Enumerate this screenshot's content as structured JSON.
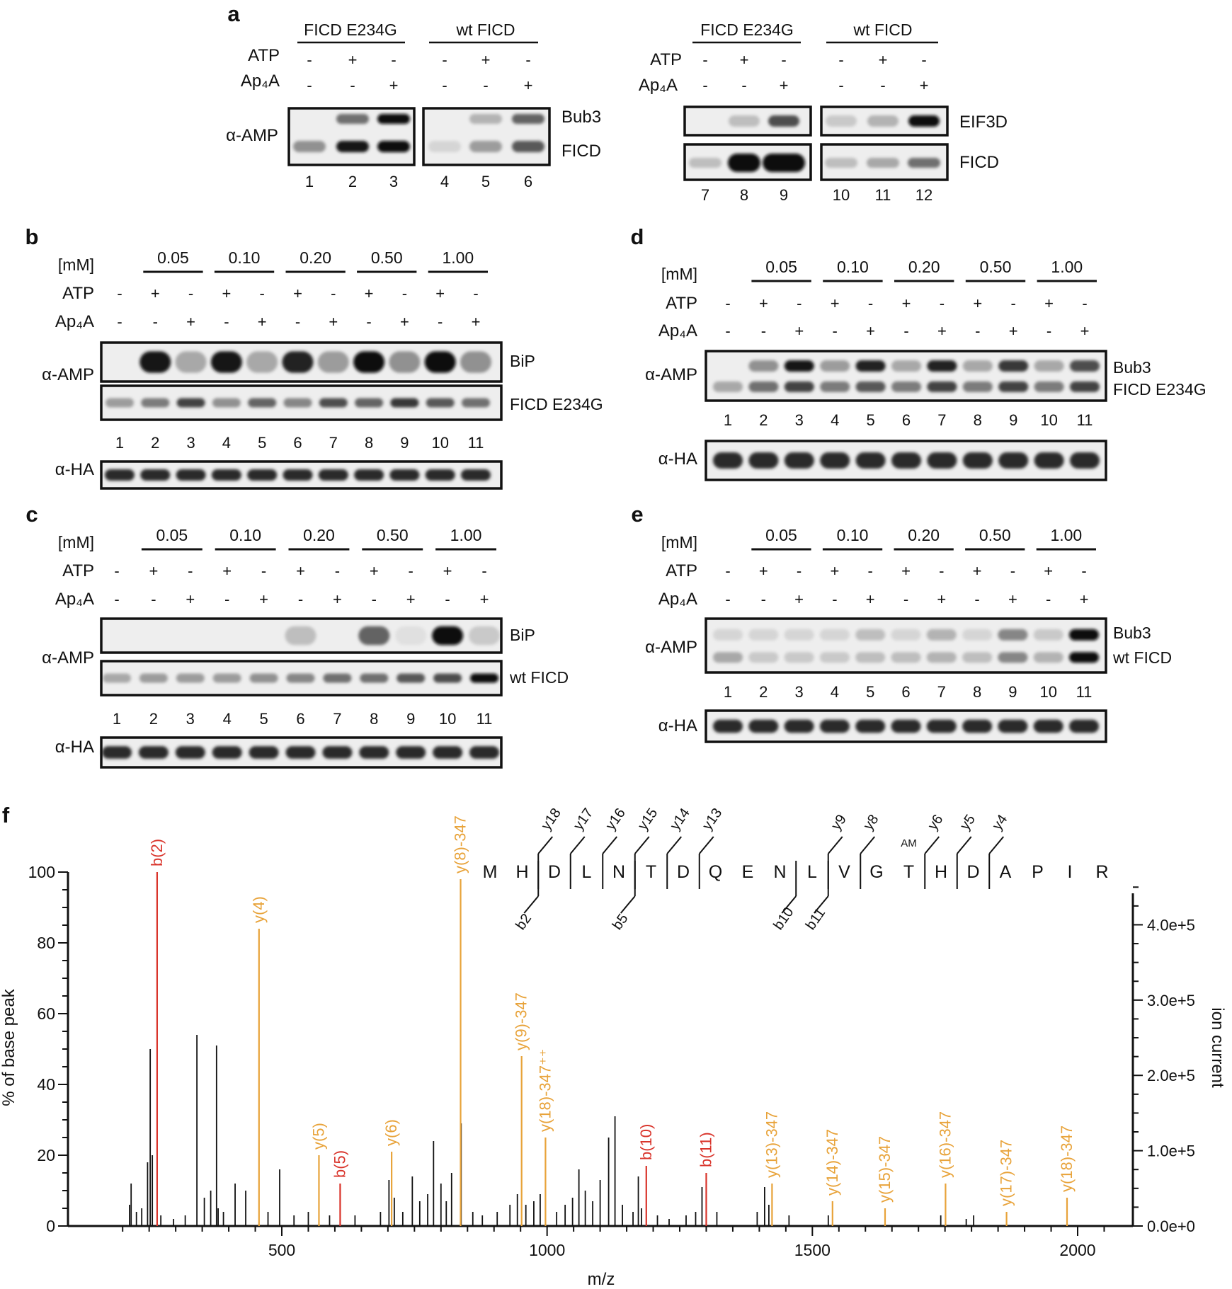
{
  "panel_a": {
    "label": "a",
    "left": {
      "groups": [
        "FICD E234G",
        "wt FICD"
      ],
      "row_labels": [
        "ATP",
        "Ap₄A"
      ],
      "atp": [
        "-",
        "+",
        "-",
        "-",
        "+",
        "-"
      ],
      "ap4a": [
        "-",
        "-",
        "+",
        "-",
        "-",
        "+"
      ],
      "blot_label": "α-AMP",
      "bands": [
        "Bub3",
        "FICD"
      ],
      "lanes": [
        "1",
        "2",
        "3",
        "4",
        "5",
        "6"
      ]
    },
    "right": {
      "groups": [
        "FICD E234G",
        "wt FICD"
      ],
      "row_labels": [
        "ATP",
        "Ap₄A"
      ],
      "atp": [
        "-",
        "+",
        "-",
        "-",
        "+",
        "-"
      ],
      "ap4a": [
        "-",
        "-",
        "+",
        "-",
        "-",
        "+"
      ],
      "bands": [
        "EIF3D",
        "FICD"
      ],
      "lanes": [
        "7",
        "8",
        "9",
        "10",
        "11",
        "12"
      ]
    }
  },
  "titration_panels": [
    {
      "label": "b",
      "conc_label": "[mM]",
      "concentrations": [
        "0.05",
        "0.10",
        "0.20",
        "0.50",
        "1.00"
      ],
      "row_labels": [
        "ATP",
        "Ap₄A"
      ],
      "atp": [
        "-",
        "+",
        "-",
        "+",
        "-",
        "+",
        "-",
        "+",
        "-",
        "+",
        "-"
      ],
      "ap4a": [
        "-",
        "-",
        "+",
        "-",
        "+",
        "-",
        "+",
        "-",
        "+",
        "-",
        "+"
      ],
      "blot_label": "α-AMP",
      "bands": [
        "BiP",
        "FICD E234G"
      ],
      "lanes": [
        "1",
        "2",
        "3",
        "4",
        "5",
        "6",
        "7",
        "8",
        "9",
        "10",
        "11"
      ],
      "loading_label": "α-HA"
    },
    {
      "label": "c",
      "conc_label": "[mM]",
      "concentrations": [
        "0.05",
        "0.10",
        "0.20",
        "0.50",
        "1.00"
      ],
      "row_labels": [
        "ATP",
        "Ap₄A"
      ],
      "atp": [
        "-",
        "+",
        "-",
        "+",
        "-",
        "+",
        "-",
        "+",
        "-",
        "+",
        "-"
      ],
      "ap4a": [
        "-",
        "-",
        "+",
        "-",
        "+",
        "-",
        "+",
        "-",
        "+",
        "-",
        "+"
      ],
      "blot_label": "α-AMP",
      "bands": [
        "BiP",
        "wt FICD"
      ],
      "lanes": [
        "1",
        "2",
        "3",
        "4",
        "5",
        "6",
        "7",
        "8",
        "9",
        "10",
        "11"
      ],
      "loading_label": "α-HA"
    },
    {
      "label": "d",
      "conc_label": "[mM]",
      "concentrations": [
        "0.05",
        "0.10",
        "0.20",
        "0.50",
        "1.00"
      ],
      "row_labels": [
        "ATP",
        "Ap₄A"
      ],
      "atp": [
        "-",
        "+",
        "-",
        "+",
        "-",
        "+",
        "-",
        "+",
        "-",
        "+",
        "-"
      ],
      "ap4a": [
        "-",
        "-",
        "+",
        "-",
        "+",
        "-",
        "+",
        "-",
        "+",
        "-",
        "+"
      ],
      "blot_label": "α-AMP",
      "bands": [
        "Bub3",
        "FICD E234G"
      ],
      "lanes": [
        "1",
        "2",
        "3",
        "4",
        "5",
        "6",
        "7",
        "8",
        "9",
        "10",
        "11"
      ],
      "loading_label": "α-HA"
    },
    {
      "label": "e",
      "conc_label": "[mM]",
      "concentrations": [
        "0.05",
        "0.10",
        "0.20",
        "0.50",
        "1.00"
      ],
      "row_labels": [
        "ATP",
        "Ap₄A"
      ],
      "atp": [
        "-",
        "+",
        "-",
        "+",
        "-",
        "+",
        "-",
        "+",
        "-",
        "+",
        "-"
      ],
      "ap4a": [
        "-",
        "-",
        "+",
        "-",
        "+",
        "-",
        "+",
        "-",
        "+",
        "-",
        "+"
      ],
      "blot_label": "α-AMP",
      "bands": [
        "Bub3",
        "wt FICD"
      ],
      "lanes": [
        "1",
        "2",
        "3",
        "4",
        "5",
        "6",
        "7",
        "8",
        "9",
        "10",
        "11"
      ],
      "loading_label": "α-HA"
    }
  ],
  "spectrum": {
    "label": "f",
    "peptide": [
      "M",
      "H",
      "D",
      "L",
      "N",
      "T",
      "D",
      "Q",
      "E",
      "N",
      "L",
      "V",
      "G",
      "T",
      "H",
      "D",
      "A",
      "P",
      "I",
      "R"
    ],
    "modification_label": "AM",
    "fragment_marks_top": [
      "y18",
      "y17",
      "y16",
      "y15",
      "y14",
      "y13",
      "y9",
      "y8",
      "y6",
      "y5",
      "y4"
    ],
    "fragment_marks_bottom": [
      "b2",
      "b5",
      "b10",
      "b11"
    ],
    "colors": {
      "b_ions": "#d9342b",
      "y_ions": "#e8a33a",
      "unassigned": "#111111"
    }
  },
  "chart_data": {
    "type": "bar",
    "title": "",
    "xlabel": "m/z",
    "ylabel": "% of base peak",
    "y2label": "ion current",
    "xlim": [
      200,
      2080
    ],
    "ylim": [
      0,
      100
    ],
    "y2lim": [
      0,
      470000
    ],
    "xticks": [
      "500",
      "1000",
      "1500",
      "2000"
    ],
    "yticks": [
      "0",
      "20",
      "40",
      "60",
      "80",
      "100"
    ],
    "y2ticks": [
      "0.0e+0",
      "1.0e+5",
      "2.0e+5",
      "3.0e+5",
      "4.0e+5"
    ],
    "annotated_peaks": [
      {
        "label": "b(2)",
        "mz": 265,
        "value": 100,
        "ion": "b"
      },
      {
        "label": "y(4)",
        "mz": 457,
        "value": 84,
        "ion": "y"
      },
      {
        "label": "y(5)",
        "mz": 570,
        "value": 20,
        "ion": "y"
      },
      {
        "label": "b(5)",
        "mz": 610,
        "value": 12,
        "ion": "b"
      },
      {
        "label": "y(6)",
        "mz": 707,
        "value": 21,
        "ion": "y"
      },
      {
        "label": "y(8)-347",
        "mz": 837,
        "value": 98,
        "ion": "y"
      },
      {
        "label": "y(9)-347",
        "mz": 952,
        "value": 48,
        "ion": "y"
      },
      {
        "label": "y(18)-347⁺⁺",
        "mz": 997,
        "value": 25,
        "ion": "y"
      },
      {
        "label": "b(10)",
        "mz": 1187,
        "value": 17,
        "ion": "b"
      },
      {
        "label": "b(11)",
        "mz": 1300,
        "value": 15,
        "ion": "b"
      },
      {
        "label": "y(13)-347",
        "mz": 1424,
        "value": 12,
        "ion": "y"
      },
      {
        "label": "y(14)-347",
        "mz": 1538,
        "value": 7,
        "ion": "y"
      },
      {
        "label": "y(15)-347",
        "mz": 1637,
        "value": 5,
        "ion": "y"
      },
      {
        "label": "y(16)-347",
        "mz": 1751,
        "value": 12,
        "ion": "y"
      },
      {
        "label": "y(17)-347",
        "mz": 1866,
        "value": 4,
        "ion": "y"
      },
      {
        "label": "y(18)-347",
        "mz": 1980,
        "value": 8,
        "ion": "y"
      }
    ],
    "unassigned_peaks": [
      {
        "mz": 213,
        "value": 6
      },
      {
        "mz": 216,
        "value": 12
      },
      {
        "mz": 226,
        "value": 4
      },
      {
        "mz": 236,
        "value": 5
      },
      {
        "mz": 247,
        "value": 18
      },
      {
        "mz": 252,
        "value": 50
      },
      {
        "mz": 256,
        "value": 20
      },
      {
        "mz": 272,
        "value": 3
      },
      {
        "mz": 296,
        "value": 2
      },
      {
        "mz": 318,
        "value": 3
      },
      {
        "mz": 340,
        "value": 54
      },
      {
        "mz": 354,
        "value": 8
      },
      {
        "mz": 366,
        "value": 10
      },
      {
        "mz": 377,
        "value": 51
      },
      {
        "mz": 380,
        "value": 5
      },
      {
        "mz": 390,
        "value": 4
      },
      {
        "mz": 412,
        "value": 12
      },
      {
        "mz": 432,
        "value": 10
      },
      {
        "mz": 474,
        "value": 4
      },
      {
        "mz": 496,
        "value": 16
      },
      {
        "mz": 523,
        "value": 3
      },
      {
        "mz": 550,
        "value": 4
      },
      {
        "mz": 590,
        "value": 3
      },
      {
        "mz": 638,
        "value": 3
      },
      {
        "mz": 686,
        "value": 4
      },
      {
        "mz": 702,
        "value": 13
      },
      {
        "mz": 712,
        "value": 8
      },
      {
        "mz": 728,
        "value": 4
      },
      {
        "mz": 746,
        "value": 14
      },
      {
        "mz": 760,
        "value": 7
      },
      {
        "mz": 775,
        "value": 9
      },
      {
        "mz": 786,
        "value": 24
      },
      {
        "mz": 800,
        "value": 12
      },
      {
        "mz": 810,
        "value": 7
      },
      {
        "mz": 820,
        "value": 15
      },
      {
        "mz": 838,
        "value": 29
      },
      {
        "mz": 860,
        "value": 4
      },
      {
        "mz": 878,
        "value": 3
      },
      {
        "mz": 906,
        "value": 4
      },
      {
        "mz": 930,
        "value": 6
      },
      {
        "mz": 944,
        "value": 9
      },
      {
        "mz": 960,
        "value": 6
      },
      {
        "mz": 975,
        "value": 7
      },
      {
        "mz": 987,
        "value": 9
      },
      {
        "mz": 1018,
        "value": 4
      },
      {
        "mz": 1034,
        "value": 6
      },
      {
        "mz": 1048,
        "value": 8
      },
      {
        "mz": 1060,
        "value": 16
      },
      {
        "mz": 1072,
        "value": 10
      },
      {
        "mz": 1086,
        "value": 7
      },
      {
        "mz": 1100,
        "value": 13
      },
      {
        "mz": 1116,
        "value": 25
      },
      {
        "mz": 1128,
        "value": 31
      },
      {
        "mz": 1142,
        "value": 6
      },
      {
        "mz": 1162,
        "value": 4
      },
      {
        "mz": 1172,
        "value": 14
      },
      {
        "mz": 1178,
        "value": 5
      },
      {
        "mz": 1208,
        "value": 3
      },
      {
        "mz": 1230,
        "value": 2
      },
      {
        "mz": 1262,
        "value": 3
      },
      {
        "mz": 1280,
        "value": 4
      },
      {
        "mz": 1292,
        "value": 11
      },
      {
        "mz": 1320,
        "value": 4
      },
      {
        "mz": 1396,
        "value": 4
      },
      {
        "mz": 1410,
        "value": 11
      },
      {
        "mz": 1418,
        "value": 6
      },
      {
        "mz": 1456,
        "value": 3
      },
      {
        "mz": 1530,
        "value": 3
      },
      {
        "mz": 1742,
        "value": 3
      },
      {
        "mz": 1790,
        "value": 2
      },
      {
        "mz": 1804,
        "value": 3
      }
    ]
  }
}
